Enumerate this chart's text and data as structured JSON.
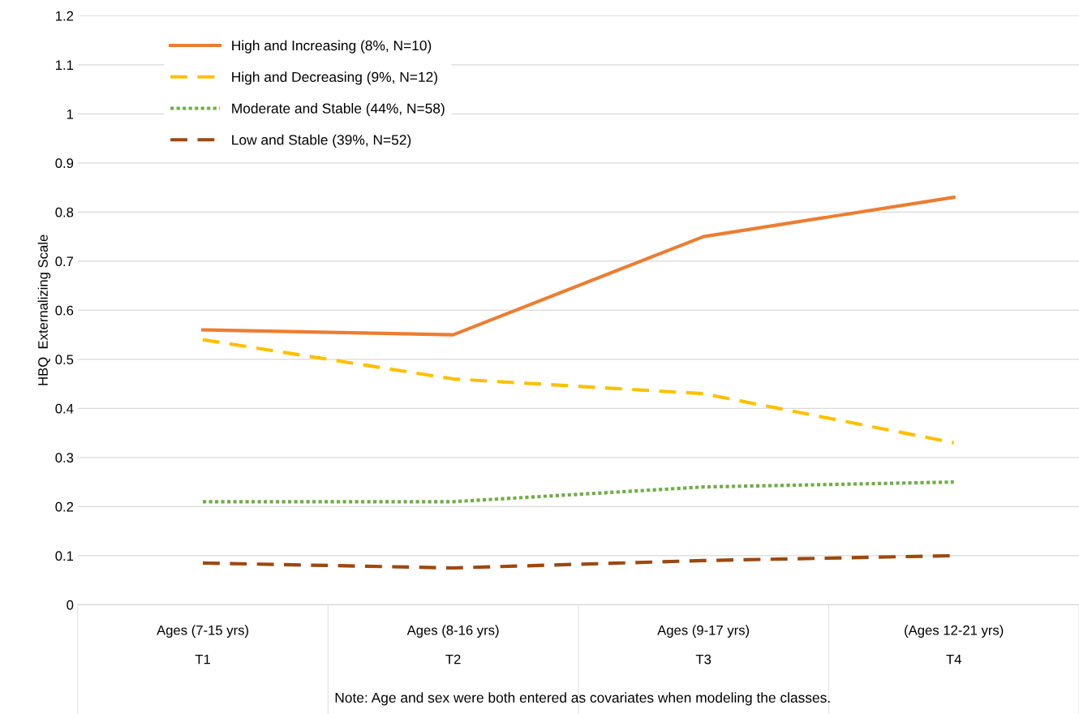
{
  "chart_data": {
    "type": "line",
    "ylabel": "HBQ  Externalizing Scale",
    "categories": [
      "Ages (7-15 yrs)\n\nT1",
      "Ages (8-16 yrs)\n\nT2",
      "Ages (9-17 yrs)\n\nT3",
      "(Ages 12-21 yrs)\n\nT4"
    ],
    "series": [
      {
        "name": "High and Increasing (8%, N=10)",
        "color": "#ed7d31",
        "line_style": "solid",
        "values": [
          0.56,
          0.55,
          0.75,
          0.83
        ]
      },
      {
        "name": "High and Decreasing (9%, N=12)",
        "color": "#ffc000",
        "line_style": "dashed",
        "values": [
          0.54,
          0.46,
          0.43,
          0.33
        ]
      },
      {
        "name": "Moderate and Stable (44%, N=58)",
        "color": "#70ad47",
        "line_style": "dotted",
        "values": [
          0.21,
          0.21,
          0.24,
          0.25
        ]
      },
      {
        "name": "Low and Stable (39%, N=52)",
        "color": "#9e480e",
        "line_style": "dashed",
        "values": [
          0.085,
          0.075,
          0.09,
          0.1
        ]
      }
    ],
    "ylim": [
      0,
      1.2
    ],
    "yticks": [
      0,
      0.1,
      0.2,
      0.3,
      0.4,
      0.5,
      0.6,
      0.7,
      0.8,
      0.9,
      1,
      1.1,
      1.2
    ],
    "grid": "y",
    "legend": "top left",
    "marker": "none",
    "annotations": [
      "Note: Age and sex were both entered as covariates when modeling the classes."
    ]
  }
}
